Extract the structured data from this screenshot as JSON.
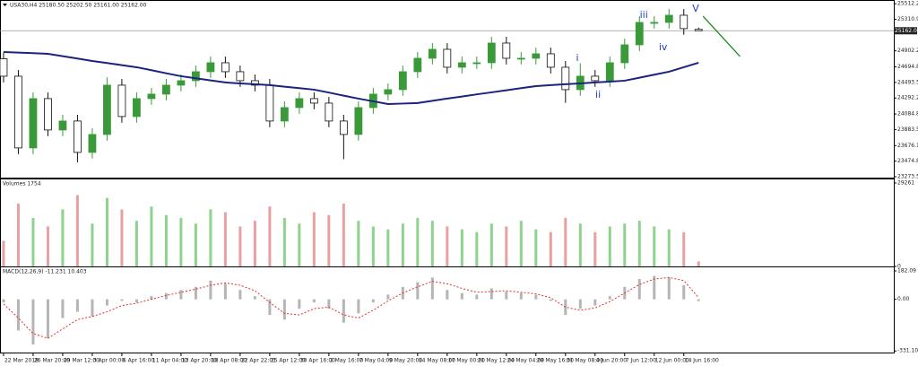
{
  "chart_data": {
    "type": "candlestick",
    "title": "USA30,H4 25180.50 25202.50 25161.00 25162.00",
    "xlim": [
      -0.24,
      60.2
    ],
    "xticks": [
      {
        "value": 0,
        "label": "22 Mar 2018"
      },
      {
        "value": 2,
        "label": "26 Mar 20:00"
      },
      {
        "value": 4,
        "label": "29 Mar 12:00"
      },
      {
        "value": 6,
        "label": "3 Apr 00:00"
      },
      {
        "value": 8,
        "label": "6 Apr 16:00"
      },
      {
        "value": 10,
        "label": "11 Apr 04:00"
      },
      {
        "value": 12,
        "label": "13 Apr 20:00"
      },
      {
        "value": 14,
        "label": "18 Apr 08:00"
      },
      {
        "value": 16,
        "label": "22 Apr 22:01"
      },
      {
        "value": 18,
        "label": "25 Apr 12:00"
      },
      {
        "value": 20,
        "label": "30 Apr 16:00"
      },
      {
        "value": 22,
        "label": "2 May 16:00"
      },
      {
        "value": 24,
        "label": "7 May 04:00"
      },
      {
        "value": 26,
        "label": "9 May 20:00"
      },
      {
        "value": 28,
        "label": "14 May 08:00"
      },
      {
        "value": 30,
        "label": "17 May 00:00"
      },
      {
        "value": 32,
        "label": "21 May 12:00"
      },
      {
        "value": 34,
        "label": "24 May 04:00"
      },
      {
        "value": 36,
        "label": "28 May 16:00"
      },
      {
        "value": 38,
        "label": "31 May 08:00"
      },
      {
        "value": 40,
        "label": "4 Jun 20:00"
      },
      {
        "value": 42,
        "label": "7 Jun 12:00"
      },
      {
        "value": 44,
        "label": "12 Jun 00:00"
      },
      {
        "value": 46,
        "label": "14 Jun 16:00"
      }
    ],
    "ylim": [
      23250,
      25560
    ],
    "yticks": [
      {
        "value": 25512.2,
        "label": "25512.20"
      },
      {
        "value": 25310.9,
        "label": "25310.90"
      },
      {
        "value": 24902.2,
        "label": "24902.20"
      },
      {
        "value": 24694.8,
        "label": "24694.80"
      },
      {
        "value": 24493.5,
        "label": "24493.50"
      },
      {
        "value": 24292.2,
        "label": "24292.20"
      },
      {
        "value": 24084.8,
        "label": "24084.80"
      },
      {
        "value": 23883.5,
        "label": "23883.50"
      },
      {
        "value": 23676.1,
        "label": "23676.10"
      },
      {
        "value": 23474.8,
        "label": "23474.80"
      },
      {
        "value": 23273.5,
        "label": "23273.50"
      }
    ],
    "last_price": {
      "value": 25162,
      "label": "25162.00"
    },
    "up_color": "#3a9a3a",
    "down_color": "#111111",
    "open": [
      24800,
      24574,
      23646,
      24284,
      23878,
      23994,
      23588,
      23820,
      24458,
      24052,
      24284,
      24342,
      24458,
      24516,
      24632,
      24748,
      24632,
      24516,
      24458,
      23994,
      24168,
      24284,
      24226,
      23994,
      23820,
      24168,
      24342,
      24400,
      24632,
      24806,
      24922,
      24690,
      24748,
      24748,
      25003,
      24806,
      24806,
      24864,
      24690,
      24400,
      24574,
      24516,
      24748,
      24980,
      25270,
      25270,
      25363,
      25180.5
    ],
    "high": [
      24880,
      24654,
      24364,
      24364,
      24074,
      24074,
      23900,
      24560,
      24538,
      24364,
      24422,
      24538,
      24596,
      24712,
      24828,
      24828,
      24712,
      24596,
      24538,
      24248,
      24364,
      24364,
      24306,
      24074,
      24248,
      24422,
      24480,
      24712,
      24886,
      25002,
      25002,
      24828,
      24828,
      25083,
      25083,
      24886,
      24944,
      24944,
      24770,
      24740,
      24654,
      24828,
      25060,
      25350,
      25350,
      25443,
      25443,
      25202.5
    ],
    "low": [
      24494,
      23566,
      23566,
      23798,
      23798,
      23460,
      23508,
      23740,
      23972,
      23972,
      24204,
      24262,
      24378,
      24436,
      24552,
      24552,
      24436,
      24378,
      23914,
      23914,
      24088,
      24146,
      23914,
      23500,
      23740,
      24088,
      24262,
      24320,
      24552,
      24726,
      24610,
      24610,
      24668,
      24668,
      24726,
      24726,
      24726,
      24610,
      24230,
      24320,
      24436,
      24436,
      24668,
      24900,
      25190,
      25190,
      25110,
      25161
    ],
    "close": [
      24574,
      23646,
      24284,
      23878,
      23994,
      23588,
      23820,
      24458,
      24052,
      24284,
      24342,
      24458,
      24516,
      24632,
      24748,
      24632,
      24516,
      24458,
      23994,
      24168,
      24284,
      24226,
      23994,
      23820,
      24168,
      24342,
      24400,
      24632,
      24806,
      24922,
      24690,
      24748,
      24748,
      25003,
      24806,
      24806,
      24864,
      24690,
      24400,
      24574,
      24516,
      24748,
      24980,
      25270,
      25270,
      25363,
      25190,
      25162
    ],
    "ma": {
      "color": "#1a237e",
      "values": [
        24887,
        24879,
        24872,
        24864,
        24833,
        24803,
        24771,
        24745,
        24717,
        24690,
        24652,
        24612,
        24574,
        24547,
        24520,
        24493,
        24481,
        24470,
        24458,
        24438,
        24419,
        24400,
        24362,
        24322,
        24284,
        24249,
        24214,
        24220,
        24226,
        24255,
        24284,
        24311,
        24339,
        24365,
        24392,
        24419,
        24446,
        24458,
        24470,
        24481,
        24493,
        24504,
        24516,
        24554,
        24594,
        24632,
        24690,
        24748
      ]
    },
    "trendline": {
      "color": "#1b8a1b",
      "x": [
        47.3,
        49.8
      ],
      "y": [
        25351,
        24829
      ]
    },
    "annotations": [
      {
        "text": "iii",
        "x": 43.3,
        "y": 25363
      },
      {
        "text": "V",
        "x": 46.8,
        "y": 25444
      },
      {
        "text": "iv",
        "x": 44.6,
        "y": 24945
      },
      {
        "text": "i",
        "x": 38.8,
        "y": 24806
      },
      {
        "text": "ii",
        "x": 40.2,
        "y": 24330
      }
    ],
    "annotation_color": "#1f3fbf",
    "volume": {
      "label": "Volumes 1754",
      "ylim": [
        0,
        30500
      ],
      "yticks": [
        29261,
        0
      ],
      "up_color": "#8fd18f",
      "down_color": "#e8a0a0",
      "values": [
        9000,
        22000,
        17000,
        14000,
        20000,
        25000,
        15000,
        24000,
        20000,
        16000,
        21000,
        18000,
        17000,
        15000,
        20000,
        19000,
        14000,
        16000,
        21000,
        17000,
        15000,
        19000,
        18000,
        22000,
        16000,
        14000,
        13000,
        15000,
        17000,
        16000,
        14000,
        13000,
        12000,
        15000,
        14000,
        16000,
        13000,
        12000,
        17000,
        15000,
        12000,
        14000,
        15000,
        16000,
        14000,
        13000,
        12000,
        1754
      ]
    },
    "macd": {
      "label": "MACD(12,26,9) -11.231 10.403",
      "ylim": [
        -347,
        205
      ],
      "yticks": [
        {
          "value": 182.09,
          "label": "182.09"
        },
        {
          "value": 0,
          "label": "0.00"
        },
        -331.102
      ],
      "hist_color": "#b5b5b5",
      "signal_color": "#e03030",
      "values": [
        -20,
        -200,
        -290,
        -250,
        -120,
        -80,
        -110,
        -40,
        -10,
        -20,
        20,
        40,
        60,
        80,
        120,
        100,
        60,
        20,
        -100,
        -130,
        -60,
        -20,
        -60,
        -150,
        -90,
        -20,
        30,
        80,
        110,
        140,
        60,
        40,
        30,
        70,
        50,
        40,
        30,
        -10,
        -100,
        -60,
        -40,
        20,
        80,
        130,
        150,
        140,
        90,
        -11.231
      ],
      "signal": [
        -30,
        -120,
        -220,
        -250,
        -190,
        -130,
        -110,
        -80,
        -40,
        -25,
        0,
        25,
        45,
        65,
        90,
        105,
        90,
        55,
        -20,
        -90,
        -100,
        -60,
        -50,
        -100,
        -120,
        -70,
        -10,
        40,
        80,
        115,
        100,
        70,
        45,
        50,
        55,
        45,
        35,
        10,
        -50,
        -70,
        -55,
        -15,
        40,
        95,
        130,
        140,
        120,
        10.403
      ]
    }
  }
}
